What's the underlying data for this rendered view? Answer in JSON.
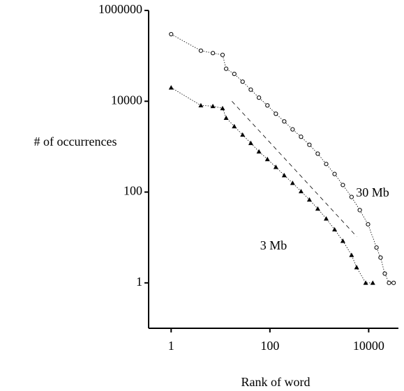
{
  "chart_data": {
    "type": "scatter",
    "xlabel": "Rank of word",
    "ylabel": "# of occurrences",
    "xlog": true,
    "ylog": true,
    "xlim": [
      0.35,
      40000
    ],
    "ylim": [
      0.1,
      1000000
    ],
    "xticks": [
      1,
      100,
      10000
    ],
    "yticks": [
      1,
      100,
      10000,
      1000000
    ],
    "series": [
      {
        "name": "30 Mb",
        "color": "#000000",
        "marker": "circle",
        "x": [
          1,
          4,
          7,
          11,
          13,
          19,
          28,
          41,
          60,
          89,
          132,
          195,
          288,
          427,
          630,
          930,
          1380,
          2040,
          3000,
          4500,
          6600,
          9700,
          14400,
          17400,
          21200,
          25800,
          32000
        ],
        "values": [
          300000,
          130000,
          115000,
          105000,
          52000,
          40000,
          27000,
          18000,
          12000,
          8100,
          5300,
          3600,
          2400,
          1650,
          1100,
          700,
          415,
          250,
          143,
          78,
          40,
          19.5,
          6,
          3.6,
          1.6,
          1,
          1
        ]
      },
      {
        "name": "3 Mb",
        "color": "#000000",
        "marker": "triangle",
        "x": [
          1,
          4,
          7,
          11,
          13,
          19,
          28,
          41,
          60,
          89,
          132,
          195,
          288,
          427,
          630,
          930,
          1380,
          2040,
          3000,
          4500,
          5700,
          8700,
          12100
        ],
        "values": [
          20000,
          8100,
          7800,
          7000,
          4300,
          2800,
          1830,
          1200,
          780,
          530,
          356,
          234,
          158,
          104,
          68,
          43,
          26,
          15,
          8.4,
          4.1,
          2.2,
          1,
          1
        ]
      }
    ],
    "guide_line": {
      "x": [
        17,
        5750
      ],
      "values": [
        10000,
        10.4
      ]
    }
  }
}
